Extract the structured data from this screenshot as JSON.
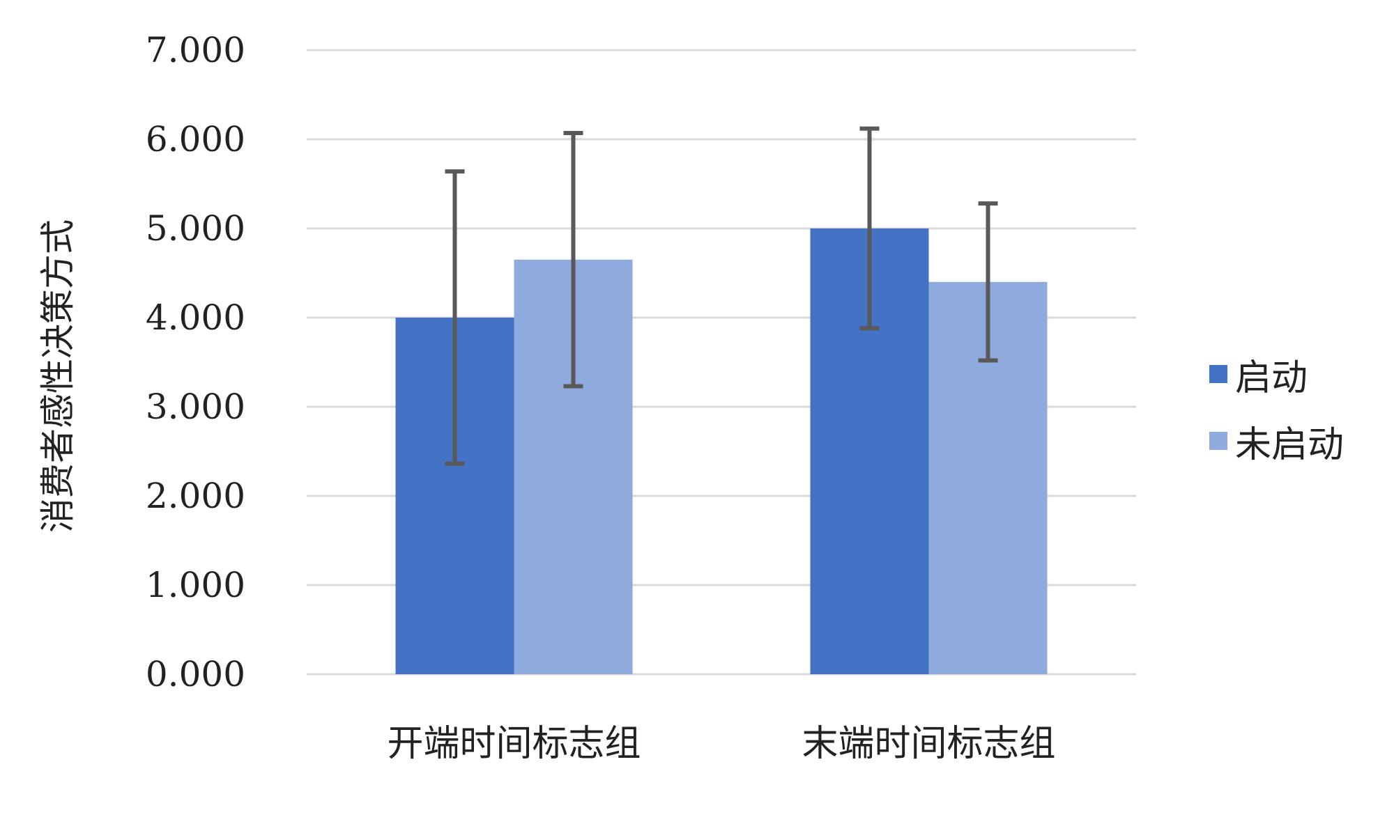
{
  "chart_data": {
    "type": "bar",
    "categories": [
      "开端时间标志组",
      "末端时间标志组"
    ],
    "series": [
      {
        "name": "启动",
        "values": [
          4.0,
          5.0
        ],
        "error": [
          1.64,
          1.12
        ],
        "color": "#4472c4"
      },
      {
        "name": "未启动",
        "values": [
          4.65,
          4.4
        ],
        "error": [
          1.42,
          0.88
        ],
        "color": "#8faadc"
      }
    ],
    "ylabel": "消费者感性决策方式",
    "ylim": [
      0,
      7
    ],
    "yticks": [
      "0.000",
      "1.000",
      "2.000",
      "3.000",
      "4.000",
      "5.000",
      "6.000",
      "7.000"
    ],
    "grid": true,
    "legend_position": "right",
    "gridline_color": "#d9d9d9",
    "errorbar_color": "#595959"
  }
}
